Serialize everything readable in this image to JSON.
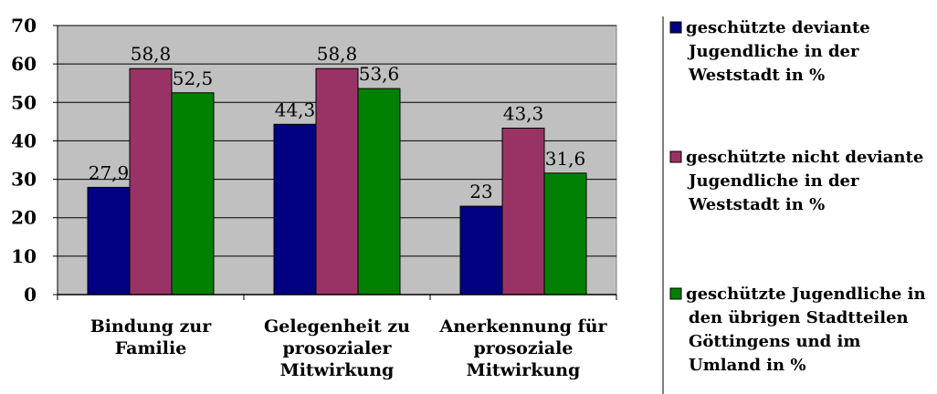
{
  "chart_data": {
    "type": "bar",
    "categories": [
      [
        "Bindung zur",
        "Familie"
      ],
      [
        "Gelegenheit zu",
        "prosozialer",
        "Mitwirkung"
      ],
      [
        "Anerkennung für",
        "prosoziale",
        "Mitwirkung"
      ]
    ],
    "series": [
      {
        "name": "geschützte deviante Jugendliche in der Weststadt in %",
        "legend_lines": [
          "geschützte deviante",
          "Jugendliche in der",
          "Weststadt in %"
        ],
        "color": "#000080",
        "values": [
          27.9,
          44.3,
          23
        ],
        "labels": [
          "27,9",
          "44,3",
          "23"
        ]
      },
      {
        "name": "geschützte nicht deviante Jugendliche in der Weststadt in %",
        "legend_lines": [
          "geschützte nicht deviante",
          "Jugendliche in der",
          "Weststadt in %"
        ],
        "color": "#993366",
        "values": [
          58.8,
          58.8,
          43.3
        ],
        "labels": [
          "58,8",
          "58,8",
          "43,3"
        ]
      },
      {
        "name": "geschützte Jugendliche in den übrigen Stadtteilen Göttingens und im Umland in %",
        "legend_lines": [
          "geschützte Jugendliche in",
          "den übrigen Stadtteilen",
          "Göttingens und im",
          "Umland in %"
        ],
        "color": "#008000",
        "values": [
          52.5,
          53.6,
          31.6
        ],
        "labels": [
          "52,5",
          "53,6",
          "31,6"
        ]
      }
    ],
    "ylim": [
      0,
      70
    ],
    "yticks": [
      "0",
      "10",
      "20",
      "30",
      "40",
      "50",
      "60",
      "70"
    ],
    "grid": true,
    "plot_background": "#c0c0c0",
    "legend_position": "right"
  }
}
